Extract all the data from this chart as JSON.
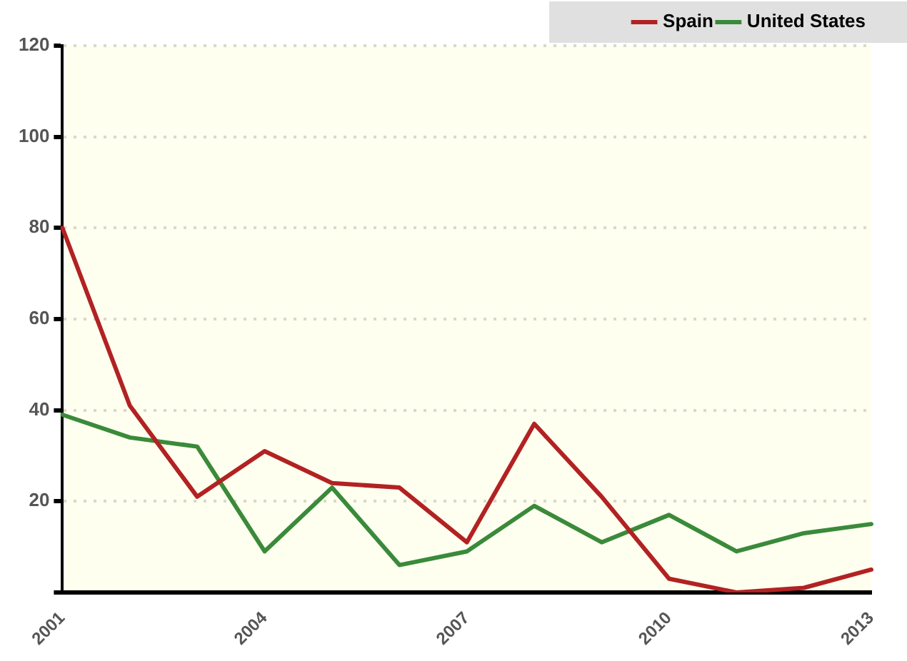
{
  "chart_data": {
    "type": "line",
    "categories": [
      "2001",
      null,
      null,
      "2004",
      null,
      null,
      "2007",
      null,
      null,
      "2010",
      null,
      null,
      "2013"
    ],
    "series": [
      {
        "name": "Spain",
        "color": "#b22222",
        "values": [
          80,
          41,
          21,
          31,
          24,
          23,
          11,
          37,
          21,
          3,
          0,
          1,
          5
        ]
      },
      {
        "name": "United States",
        "color": "#3a8a3a",
        "values": [
          39,
          34,
          32,
          9,
          23,
          6,
          9,
          19,
          11,
          17,
          9,
          13,
          15
        ]
      }
    ],
    "ylim": [
      0,
      120
    ],
    "yticks": [
      {
        "value": 0,
        "label": null
      },
      20,
      40,
      60,
      80,
      100,
      120
    ],
    "grid": "y",
    "legend": "top right",
    "marker": "none",
    "line_style": "solid"
  }
}
